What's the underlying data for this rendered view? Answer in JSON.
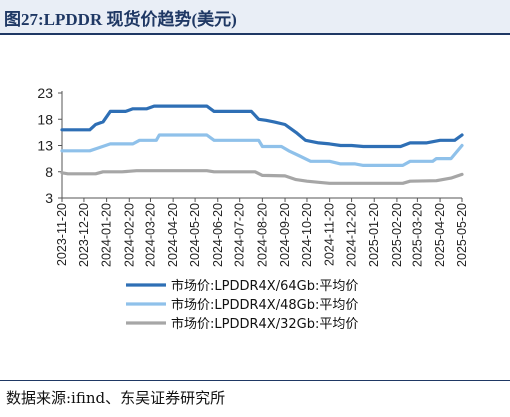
{
  "header": {
    "title": "图27:LPDDR 现货价趋势(美元)"
  },
  "footer": {
    "source": "数据来源:ifind、东吴证券研究所"
  },
  "chart_data": {
    "type": "line",
    "title": "",
    "xlabel": "",
    "ylabel": "",
    "ylim": [
      3,
      23
    ],
    "yticks": [
      3,
      8,
      13,
      18,
      23
    ],
    "grid": false,
    "legend_position": "bottom",
    "x_tick_labels": [
      "2023-11-20",
      "2023-12-20",
      "2024-01-20",
      "2024-02-20",
      "2024-03-20",
      "2024-04-20",
      "2024-05-20",
      "2024-06-20",
      "2024-07-20",
      "2024-08-20",
      "2024-09-20",
      "2024-10-20",
      "2024-11-20",
      "2024-12-20",
      "2025-01-20",
      "2025-02-20",
      "2025-03-20",
      "2025-04-20",
      "2025-05-20"
    ],
    "series": [
      {
        "name": "市场价:LPDDR4X/64Gb:平均价",
        "color": "#2e6fb5",
        "points": [
          [
            "2023-11-20",
            16.0
          ],
          [
            "2023-12-01",
            16.0
          ],
          [
            "2023-12-28",
            16.0
          ],
          [
            "2024-01-05",
            17.0
          ],
          [
            "2024-01-15",
            17.5
          ],
          [
            "2024-01-25",
            19.5
          ],
          [
            "2024-02-15",
            19.5
          ],
          [
            "2024-02-25",
            20.0
          ],
          [
            "2024-03-15",
            20.0
          ],
          [
            "2024-03-25",
            20.5
          ],
          [
            "2024-04-20",
            20.5
          ],
          [
            "2024-05-20",
            20.5
          ],
          [
            "2024-06-05",
            20.5
          ],
          [
            "2024-06-15",
            19.5
          ],
          [
            "2024-07-20",
            19.5
          ],
          [
            "2024-08-05",
            19.5
          ],
          [
            "2024-08-15",
            18.0
          ],
          [
            "2024-08-25",
            17.8
          ],
          [
            "2024-09-05",
            17.5
          ],
          [
            "2024-09-20",
            17.0
          ],
          [
            "2024-10-05",
            15.5
          ],
          [
            "2024-10-18",
            14.0
          ],
          [
            "2024-11-05",
            13.5
          ],
          [
            "2024-11-20",
            13.3
          ],
          [
            "2024-12-05",
            13.0
          ],
          [
            "2024-12-20",
            13.0
          ],
          [
            "2025-01-05",
            12.8
          ],
          [
            "2025-01-20",
            12.8
          ],
          [
            "2025-02-10",
            12.8
          ],
          [
            "2025-02-25",
            12.8
          ],
          [
            "2025-03-10",
            13.5
          ],
          [
            "2025-04-01",
            13.5
          ],
          [
            "2025-04-20",
            14.0
          ],
          [
            "2025-05-10",
            14.0
          ],
          [
            "2025-05-20",
            15.0
          ]
        ]
      },
      {
        "name": "市场价:LPDDR4X/48Gb:平均价",
        "color": "#8fc1ea",
        "points": [
          [
            "2023-11-20",
            12.0
          ],
          [
            "2023-12-28",
            12.0
          ],
          [
            "2024-01-08",
            12.5
          ],
          [
            "2024-01-25",
            13.3
          ],
          [
            "2024-02-25",
            13.3
          ],
          [
            "2024-03-05",
            14.0
          ],
          [
            "2024-03-28",
            14.0
          ],
          [
            "2024-04-01",
            15.0
          ],
          [
            "2024-05-20",
            15.0
          ],
          [
            "2024-06-05",
            15.0
          ],
          [
            "2024-06-15",
            14.0
          ],
          [
            "2024-07-20",
            14.0
          ],
          [
            "2024-08-15",
            14.0
          ],
          [
            "2024-08-20",
            12.8
          ],
          [
            "2024-09-15",
            12.8
          ],
          [
            "2024-09-25",
            12.0
          ],
          [
            "2024-10-10",
            11.0
          ],
          [
            "2024-10-25",
            10.0
          ],
          [
            "2024-11-20",
            10.0
          ],
          [
            "2024-12-05",
            9.5
          ],
          [
            "2024-12-25",
            9.5
          ],
          [
            "2025-01-05",
            9.2
          ],
          [
            "2025-02-28",
            9.2
          ],
          [
            "2025-03-10",
            10.0
          ],
          [
            "2025-04-10",
            10.0
          ],
          [
            "2025-04-15",
            10.5
          ],
          [
            "2025-05-05",
            10.5
          ],
          [
            "2025-05-20",
            13.0
          ]
        ]
      },
      {
        "name": "市场价:LPDDR4X/32Gb:平均价",
        "color": "#a6a6a6",
        "points": [
          [
            "2023-11-20",
            7.8
          ],
          [
            "2023-11-28",
            7.6
          ],
          [
            "2024-01-05",
            7.6
          ],
          [
            "2024-01-15",
            8.0
          ],
          [
            "2024-02-10",
            8.0
          ],
          [
            "2024-03-01",
            8.2
          ],
          [
            "2024-04-20",
            8.2
          ],
          [
            "2024-06-05",
            8.2
          ],
          [
            "2024-06-15",
            8.0
          ],
          [
            "2024-07-20",
            8.0
          ],
          [
            "2024-08-10",
            8.0
          ],
          [
            "2024-08-20",
            7.3
          ],
          [
            "2024-09-20",
            7.2
          ],
          [
            "2024-10-05",
            6.5
          ],
          [
            "2024-10-20",
            6.2
          ],
          [
            "2024-11-05",
            6.0
          ],
          [
            "2024-11-20",
            5.8
          ],
          [
            "2024-12-20",
            5.8
          ],
          [
            "2025-01-20",
            5.8
          ],
          [
            "2025-02-28",
            5.8
          ],
          [
            "2025-03-10",
            6.2
          ],
          [
            "2025-04-15",
            6.3
          ],
          [
            "2025-05-05",
            6.8
          ],
          [
            "2025-05-20",
            7.5
          ]
        ]
      }
    ]
  }
}
